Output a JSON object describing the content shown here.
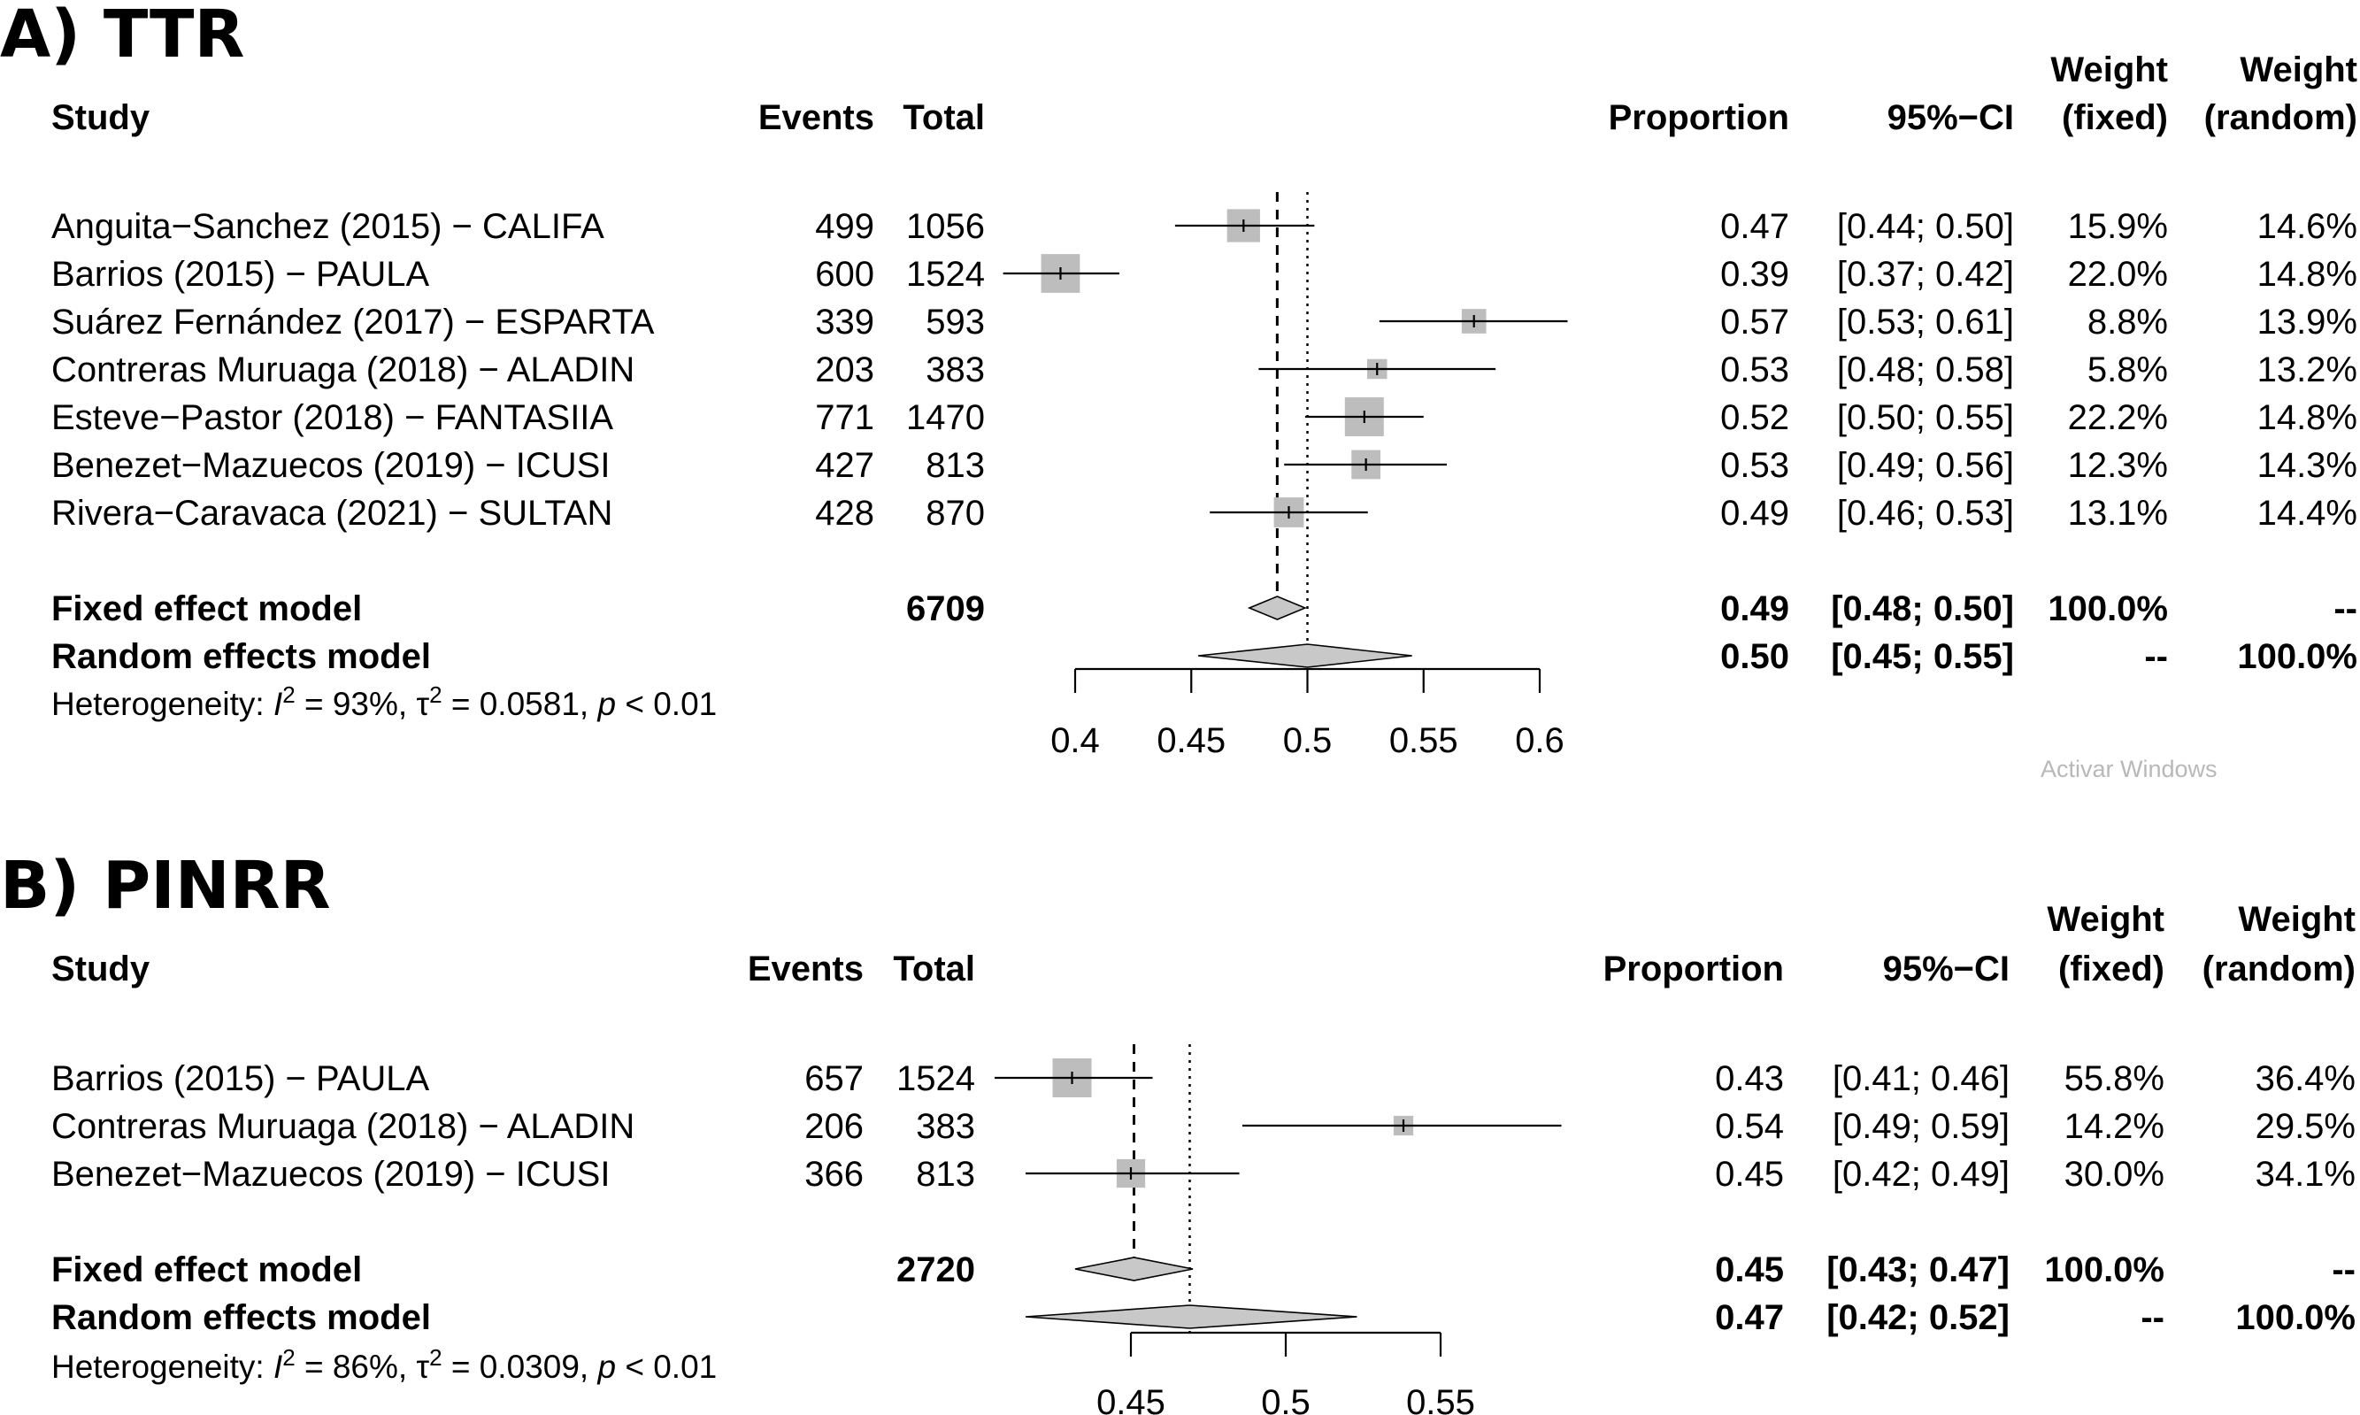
{
  "watermark": "Activar Windows",
  "colors": {
    "box": "#bdbdbd",
    "diamond": "#c8c8c8",
    "line": "#000000"
  },
  "chart_data": [
    {
      "type": "forest",
      "panel": "A) TTR",
      "headers": {
        "study": "Study",
        "events": "Events",
        "total": "Total",
        "proportion": "Proportion",
        "ci": "95%−CI",
        "weight_fixed": [
          "Weight",
          "(fixed)"
        ],
        "weight_random": [
          "Weight",
          "(random)"
        ]
      },
      "xlim": [
        0.4,
        0.6
      ],
      "ticks": [
        0.4,
        0.45,
        0.5,
        0.55,
        0.6
      ],
      "tick_labels": [
        "0.4",
        "0.45",
        "0.5",
        "0.55",
        "0.6"
      ],
      "fixed_line": 0.487,
      "random_line": 0.5,
      "studies": [
        {
          "label": "Anguita−Sanchez (2015) − CALIFA",
          "events": "499",
          "total": "1056",
          "prop_text": "0.47",
          "ci_text": "[0.44; 0.50]",
          "w_fixed": "15.9%",
          "w_random": "14.6%",
          "est": 0.4725,
          "lo": 0.443,
          "hi": 0.503,
          "weight": 15.9
        },
        {
          "label": "Barrios (2015) − PAULA",
          "events": "600",
          "total": "1524",
          "prop_text": "0.39",
          "ci_text": "[0.37; 0.42]",
          "w_fixed": "22.0%",
          "w_random": "14.8%",
          "est": 0.3937,
          "lo": 0.369,
          "hi": 0.419,
          "weight": 22.0
        },
        {
          "label": "Suárez Fernández (2017) − ESPARTA",
          "events": "339",
          "total": "593",
          "prop_text": "0.57",
          "ci_text": "[0.53; 0.61]",
          "w_fixed": "8.8%",
          "w_random": "13.9%",
          "est": 0.5717,
          "lo": 0.531,
          "hi": 0.612,
          "weight": 8.8
        },
        {
          "label": "Contreras Muruaga (2018) − ALADIN",
          "events": "203",
          "total": "383",
          "prop_text": "0.53",
          "ci_text": "[0.48; 0.58]",
          "w_fixed": "5.8%",
          "w_random": "13.2%",
          "est": 0.53,
          "lo": 0.479,
          "hi": 0.581,
          "weight": 5.8
        },
        {
          "label": "Esteve−Pastor (2018) − FANTASIIA",
          "events": "771",
          "total": "1470",
          "prop_text": "0.52",
          "ci_text": "[0.50; 0.55]",
          "w_fixed": "22.2%",
          "w_random": "14.8%",
          "est": 0.5245,
          "lo": 0.499,
          "hi": 0.55,
          "weight": 22.2
        },
        {
          "label": "Benezet−Mazuecos (2019) − ICUSI",
          "events": "427",
          "total": "813",
          "prop_text": "0.53",
          "ci_text": "[0.49; 0.56]",
          "w_fixed": "12.3%",
          "w_random": "14.3%",
          "est": 0.5252,
          "lo": 0.49,
          "hi": 0.56,
          "weight": 12.3
        },
        {
          "label": "Rivera−Caravaca (2021) − SULTAN",
          "events": "428",
          "total": "870",
          "prop_text": "0.49",
          "ci_text": "[0.46; 0.53]",
          "w_fixed": "13.1%",
          "w_random": "14.4%",
          "est": 0.492,
          "lo": 0.458,
          "hi": 0.526,
          "weight": 13.1
        }
      ],
      "fixed": {
        "label": "Fixed effect model",
        "total": "6709",
        "prop_text": "0.49",
        "ci_text": "[0.48; 0.50]",
        "w_fixed": "100.0%",
        "w_random": "--",
        "est": 0.487,
        "lo": 0.475,
        "hi": 0.499
      },
      "random": {
        "label": "Random effects model",
        "prop_text": "0.50",
        "ci_text": "[0.45; 0.55]",
        "w_fixed": "--",
        "w_random": "100.0%",
        "est": 0.5,
        "lo": 0.453,
        "hi": 0.545
      },
      "heterogeneity": {
        "prefix": "Heterogeneity: ",
        "i2_sym": "I",
        "i2_sup": "2",
        "i2_val": " = 93%, ",
        "tau_sym": "τ",
        "tau_sup": "2",
        "tau_val": " = 0.0581, ",
        "p_sym": "p",
        "p_val": " < 0.01"
      }
    },
    {
      "type": "forest",
      "panel": "B) PINRR",
      "headers": {
        "study": "Study",
        "events": "Events",
        "total": "Total",
        "proportion": "Proportion",
        "ci": "95%−CI",
        "weight_fixed": [
          "Weight",
          "(fixed)"
        ],
        "weight_random": [
          "Weight",
          "(random)"
        ]
      },
      "xlim": [
        0.45,
        0.55
      ],
      "ticks": [
        0.45,
        0.5,
        0.55
      ],
      "tick_labels": [
        "0.45",
        "0.5",
        "0.55"
      ],
      "fixed_line": 0.451,
      "random_line": 0.469,
      "studies": [
        {
          "label": "Barrios (2015) − PAULA",
          "events": "657",
          "total": "1524",
          "prop_text": "0.43",
          "ci_text": "[0.41; 0.46]",
          "w_fixed": "55.8%",
          "w_random": "36.4%",
          "est": 0.431,
          "lo": 0.406,
          "hi": 0.457,
          "weight": 55.8
        },
        {
          "label": "Contreras Muruaga (2018) − ALADIN",
          "events": "206",
          "total": "383",
          "prop_text": "0.54",
          "ci_text": "[0.49; 0.59]",
          "w_fixed": "14.2%",
          "w_random": "29.5%",
          "est": 0.538,
          "lo": 0.486,
          "hi": 0.589,
          "weight": 14.2
        },
        {
          "label": "Benezet−Mazuecos (2019) − ICUSI",
          "events": "366",
          "total": "813",
          "prop_text": "0.45",
          "ci_text": "[0.42; 0.49]",
          "w_fixed": "30.0%",
          "w_random": "34.1%",
          "est": 0.45,
          "lo": 0.416,
          "hi": 0.485,
          "weight": 30.0
        }
      ],
      "fixed": {
        "label": "Fixed effect model",
        "total": "2720",
        "prop_text": "0.45",
        "ci_text": "[0.43; 0.47]",
        "w_fixed": "100.0%",
        "w_random": "--",
        "est": 0.451,
        "lo": 0.432,
        "hi": 0.47
      },
      "random": {
        "label": "Random effects model",
        "prop_text": "0.47",
        "ci_text": "[0.42; 0.52]",
        "w_fixed": "--",
        "w_random": "100.0%",
        "est": 0.469,
        "lo": 0.416,
        "hi": 0.523
      },
      "heterogeneity": {
        "prefix": "Heterogeneity: ",
        "i2_sym": "I",
        "i2_sup": "2",
        "i2_val": " = 86%, ",
        "tau_sym": "τ",
        "tau_sup": "2",
        "tau_val": " = 0.0309, ",
        "p_sym": "p",
        "p_val": " < 0.01"
      }
    }
  ]
}
